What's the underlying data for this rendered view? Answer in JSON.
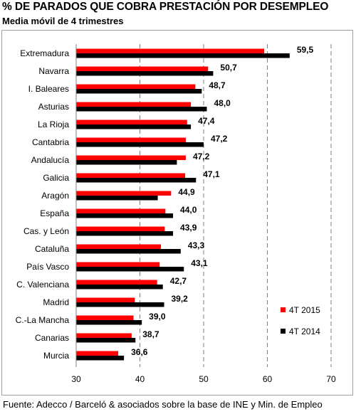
{
  "title": "% DE PARADOS QUE COBRA PRESTACIÓN POR DESEMPLEO",
  "subtitle": "Media móvil de 4 trimestres",
  "source": "Fuente: Adecco / Barceló & asociados sobre la base de INE y Min. de Empleo",
  "colors": {
    "series_2015": "#ff0000",
    "series_2014": "#000000",
    "gridline": "#7f7f7f",
    "frame": "#a0a0a0"
  },
  "chart_data": {
    "type": "bar",
    "orientation": "horizontal",
    "categories": [
      "Extremadura",
      "Navarra",
      "I. Baleares",
      "Asturias",
      "La Rioja",
      "Cantabria",
      "Andalucía",
      "Galicia",
      "Aragón",
      "España",
      "Cas. y León",
      "Cataluña",
      "País Vasco",
      "C. Valenciana",
      "Madrid",
      "C.-La Mancha",
      "Canarias",
      "Murcia"
    ],
    "series": [
      {
        "name": "4T 2015",
        "values": [
          59.5,
          50.7,
          48.7,
          48.0,
          47.4,
          47.2,
          47.2,
          47.1,
          44.9,
          44.0,
          43.9,
          43.3,
          43.1,
          42.7,
          39.2,
          39.0,
          38.7,
          36.6
        ]
      },
      {
        "name": "4T 2014",
        "values": [
          63.5,
          51.5,
          49.7,
          50.5,
          48.0,
          50.0,
          45.8,
          48.8,
          42.8,
          45.2,
          45.2,
          46.4,
          46.9,
          43.6,
          43.8,
          40.3,
          39.3,
          37.5
        ]
      }
    ],
    "data_labels": [
      "59,5",
      "50,7",
      "48,7",
      "48,0",
      "47,4",
      "47,2",
      "47,2",
      "47,1",
      "44,9",
      "44,0",
      "43,9",
      "43,3",
      "43,1",
      "42,7",
      "39,2",
      "39,0",
      "38,7",
      "36,6"
    ],
    "xlim": [
      30,
      70
    ],
    "xticks": [
      30,
      40,
      50,
      60,
      70
    ],
    "xtick_labels": [
      "30",
      "40",
      "50",
      "60",
      "70"
    ],
    "grid": "vertical dashed",
    "legend_position": "right",
    "xlabel": "",
    "ylabel": ""
  }
}
